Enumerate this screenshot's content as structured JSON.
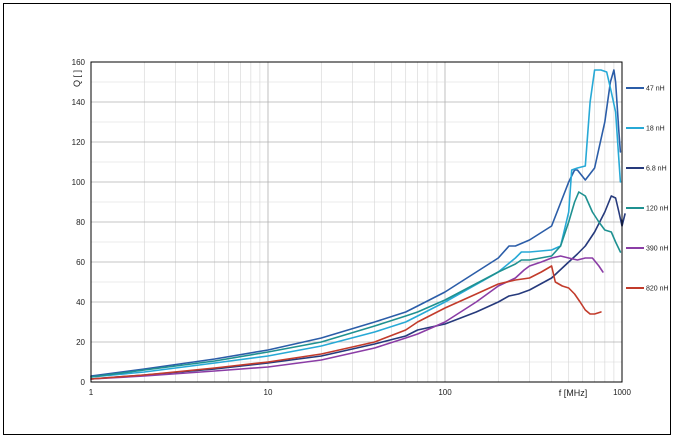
{
  "chart_data": {
    "type": "line",
    "xlabel": "f [MHz]",
    "ylabel": "Q [ ]",
    "xscale": "log",
    "xlim": [
      1,
      1000
    ],
    "ylim": [
      0,
      160
    ],
    "grid": true,
    "legend_position": "right",
    "x_ticks": [
      "1",
      "10",
      "100",
      "1000"
    ],
    "y_ticks": [
      "0",
      "20",
      "40",
      "60",
      "80",
      "100",
      "120",
      "140",
      "160"
    ],
    "series": [
      {
        "name": "47 nH",
        "color": "#2b5da8",
        "points": [
          [
            1,
            3
          ],
          [
            2,
            6.5
          ],
          [
            5,
            11.5
          ],
          [
            10,
            16
          ],
          [
            20,
            22
          ],
          [
            40,
            30
          ],
          [
            60,
            35
          ],
          [
            70,
            38
          ],
          [
            100,
            45
          ],
          [
            200,
            62
          ],
          [
            230,
            68
          ],
          [
            250,
            68
          ],
          [
            300,
            71
          ],
          [
            400,
            78
          ],
          [
            500,
            100
          ],
          [
            540,
            106
          ],
          [
            560,
            106
          ],
          [
            620,
            101
          ],
          [
            700,
            107
          ],
          [
            800,
            130
          ],
          [
            860,
            150
          ],
          [
            900,
            156
          ],
          [
            920,
            150
          ],
          [
            960,
            125
          ],
          [
            980,
            115
          ]
        ]
      },
      {
        "name": "18 nH",
        "color": "#27a9d6",
        "points": [
          [
            1,
            2.5
          ],
          [
            2,
            5
          ],
          [
            5,
            9.5
          ],
          [
            10,
            13
          ],
          [
            20,
            18
          ],
          [
            40,
            25
          ],
          [
            60,
            30
          ],
          [
            70,
            33
          ],
          [
            100,
            40
          ],
          [
            200,
            55
          ],
          [
            250,
            62
          ],
          [
            270,
            65
          ],
          [
            300,
            65
          ],
          [
            400,
            66
          ],
          [
            450,
            68
          ],
          [
            500,
            85
          ],
          [
            520,
            106
          ],
          [
            560,
            107
          ],
          [
            620,
            108
          ],
          [
            660,
            140
          ],
          [
            700,
            156
          ],
          [
            760,
            156
          ],
          [
            820,
            155
          ],
          [
            870,
            145
          ],
          [
            920,
            135
          ],
          [
            980,
            100
          ]
        ]
      },
      {
        "name": "6.8 nH",
        "color": "#263a7c",
        "points": [
          [
            1,
            1.5
          ],
          [
            2,
            3.5
          ],
          [
            5,
            6.5
          ],
          [
            10,
            9.5
          ],
          [
            20,
            13
          ],
          [
            40,
            19
          ],
          [
            60,
            23
          ],
          [
            70,
            26
          ],
          [
            100,
            29
          ],
          [
            150,
            35
          ],
          [
            200,
            40
          ],
          [
            230,
            43
          ],
          [
            260,
            44
          ],
          [
            300,
            46
          ],
          [
            400,
            52
          ],
          [
            500,
            60
          ],
          [
            560,
            64
          ],
          [
            620,
            68
          ],
          [
            700,
            75
          ],
          [
            800,
            85
          ],
          [
            870,
            93
          ],
          [
            920,
            92
          ],
          [
            960,
            85
          ],
          [
            1000,
            78
          ],
          [
            1040,
            84
          ]
        ]
      },
      {
        "name": "120 nH",
        "color": "#1f9191",
        "points": [
          [
            1,
            2.5
          ],
          [
            2,
            6
          ],
          [
            5,
            10.5
          ],
          [
            10,
            15
          ],
          [
            20,
            20
          ],
          [
            40,
            28
          ],
          [
            60,
            33
          ],
          [
            70,
            35
          ],
          [
            100,
            41
          ],
          [
            200,
            55
          ],
          [
            250,
            59
          ],
          [
            270,
            61
          ],
          [
            300,
            61
          ],
          [
            400,
            63
          ],
          [
            450,
            68
          ],
          [
            500,
            80
          ],
          [
            540,
            90
          ],
          [
            570,
            95
          ],
          [
            620,
            93
          ],
          [
            680,
            85
          ],
          [
            740,
            80
          ],
          [
            800,
            76
          ],
          [
            870,
            75
          ],
          [
            920,
            70
          ],
          [
            980,
            65
          ]
        ]
      },
      {
        "name": "390 nH",
        "color": "#8b3da6",
        "points": [
          [
            1,
            1.5
          ],
          [
            2,
            3
          ],
          [
            5,
            5.5
          ],
          [
            10,
            7.5
          ],
          [
            20,
            11
          ],
          [
            40,
            17
          ],
          [
            60,
            22
          ],
          [
            70,
            24
          ],
          [
            100,
            30
          ],
          [
            150,
            40
          ],
          [
            200,
            48
          ],
          [
            250,
            52
          ],
          [
            280,
            56
          ],
          [
            300,
            58
          ],
          [
            350,
            60
          ],
          [
            400,
            62
          ],
          [
            450,
            63
          ],
          [
            500,
            62
          ],
          [
            560,
            61
          ],
          [
            620,
            62
          ],
          [
            680,
            62
          ],
          [
            740,
            58
          ],
          [
            780,
            55
          ]
        ]
      },
      {
        "name": "820 nH",
        "color": "#c23b2b",
        "points": [
          [
            1,
            1.5
          ],
          [
            2,
            3.5
          ],
          [
            5,
            7
          ],
          [
            10,
            10
          ],
          [
            20,
            14
          ],
          [
            40,
            20
          ],
          [
            60,
            26
          ],
          [
            70,
            30
          ],
          [
            100,
            37
          ],
          [
            150,
            44
          ],
          [
            200,
            49
          ],
          [
            250,
            51
          ],
          [
            300,
            52
          ],
          [
            350,
            55
          ],
          [
            400,
            58
          ],
          [
            420,
            50
          ],
          [
            460,
            48
          ],
          [
            500,
            47
          ],
          [
            540,
            44
          ],
          [
            580,
            40
          ],
          [
            620,
            36
          ],
          [
            660,
            34
          ],
          [
            700,
            34
          ],
          [
            760,
            35
          ]
        ]
      }
    ]
  }
}
